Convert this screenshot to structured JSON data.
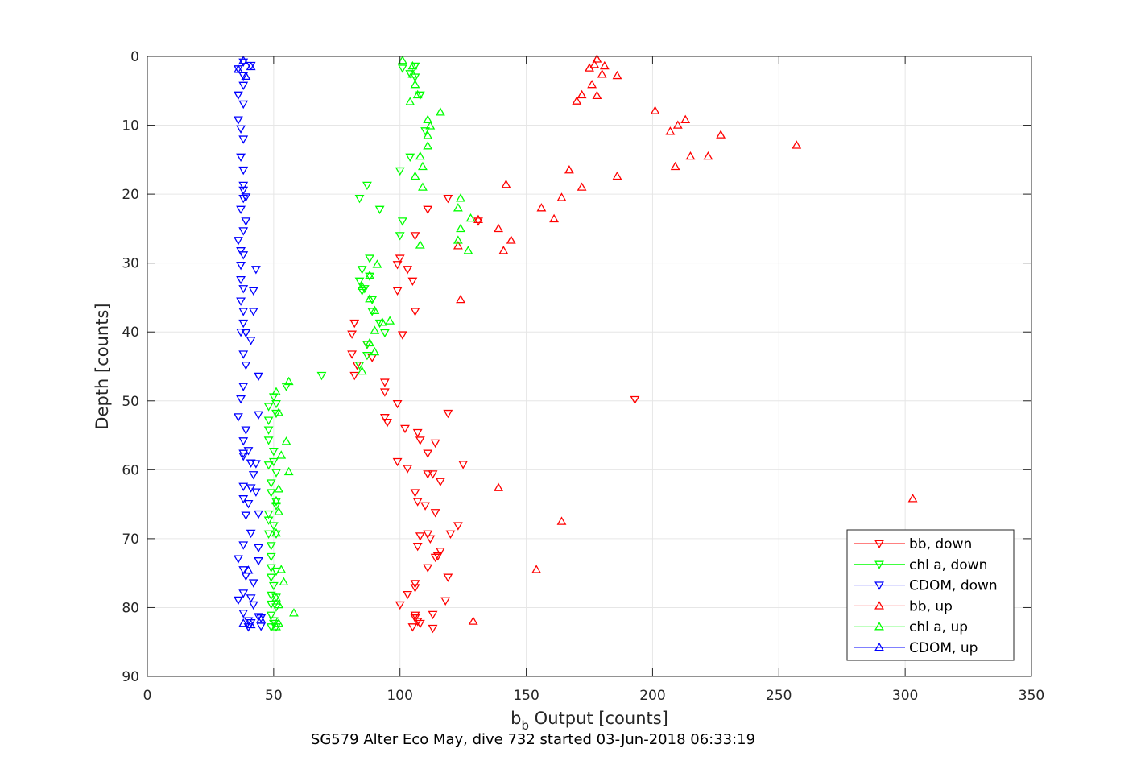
{
  "chart_data": {
    "type": "scatter",
    "caption": "SG579 Alter Eco May, dive 732 started 03-Jun-2018 06:33:19",
    "xlabel_main": "b",
    "xlabel_sub": "b",
    "xlabel_rest": " Output [counts]",
    "ylabel": "Depth [counts]",
    "xlim": [
      0,
      350
    ],
    "ylim": [
      0,
      90
    ],
    "y_reversed": true,
    "xticks": [
      "0",
      "50",
      "100",
      "150",
      "200",
      "250",
      "300",
      "350"
    ],
    "yticks": [
      "0",
      "10",
      "20",
      "30",
      "40",
      "50",
      "60",
      "70",
      "80",
      "90"
    ],
    "grid": true,
    "legend_position": "bottom-right",
    "legend": [
      "bb, down",
      "chl a, down",
      "CDOM, down",
      "bb, up",
      "chl a, up",
      "CDOM, up"
    ],
    "series": [
      {
        "name": "bb, down",
        "color": "#ff0000",
        "marker": "triangle-down",
        "points": [
          [
            119,
            20.6
          ],
          [
            111,
            22.2
          ],
          [
            131,
            23.9
          ],
          [
            106,
            26
          ],
          [
            100,
            29.3
          ],
          [
            103,
            30.9
          ],
          [
            99,
            30.2
          ],
          [
            105,
            32.6
          ],
          [
            99,
            34
          ],
          [
            106,
            37
          ],
          [
            82,
            38.7
          ],
          [
            81,
            40.3
          ],
          [
            101,
            40.4
          ],
          [
            87,
            41.8
          ],
          [
            81,
            43.2
          ],
          [
            89,
            43.7
          ],
          [
            83,
            44.8
          ],
          [
            82,
            46.3
          ],
          [
            94,
            47.3
          ],
          [
            94,
            48.7
          ],
          [
            99,
            50.4
          ],
          [
            119,
            51.8
          ],
          [
            94,
            52.4
          ],
          [
            95,
            53.1
          ],
          [
            102,
            54
          ],
          [
            107,
            54.6
          ],
          [
            108,
            55.7
          ],
          [
            114,
            56.1
          ],
          [
            111,
            57.6
          ],
          [
            99,
            58.8
          ],
          [
            125,
            59.2
          ],
          [
            103,
            59.8
          ],
          [
            111,
            60.6
          ],
          [
            113,
            60.6
          ],
          [
            116,
            61.7
          ],
          [
            106,
            63.3
          ],
          [
            107,
            64.6
          ],
          [
            110,
            65.2
          ],
          [
            114,
            66.2
          ],
          [
            123,
            68.1
          ],
          [
            111,
            69.3
          ],
          [
            108,
            69.6
          ],
          [
            120,
            69.3
          ],
          [
            112,
            70
          ],
          [
            107,
            71.1
          ],
          [
            116,
            71.8
          ],
          [
            115,
            72.5
          ],
          [
            114,
            72.7
          ],
          [
            111,
            74.2
          ],
          [
            119,
            75.6
          ],
          [
            106,
            76.5
          ],
          [
            106,
            77.1
          ],
          [
            103,
            78.1
          ],
          [
            118,
            79
          ],
          [
            100,
            79.6
          ],
          [
            106,
            81.1
          ],
          [
            113,
            81
          ],
          [
            106,
            81.5
          ],
          [
            107,
            82
          ],
          [
            108,
            82.3
          ],
          [
            105,
            82.8
          ],
          [
            113,
            83
          ],
          [
            193,
            49.8
          ]
        ]
      },
      {
        "name": "chl a, down",
        "color": "#00ff00",
        "marker": "triangle-down",
        "points": [
          [
            101,
            1.7
          ],
          [
            106,
            1.4
          ],
          [
            104,
            2.5
          ],
          [
            106,
            3
          ],
          [
            108,
            5.6
          ],
          [
            110,
            10.8
          ],
          [
            104,
            14.6
          ],
          [
            100,
            16.6
          ],
          [
            87,
            18.7
          ],
          [
            84,
            20.6
          ],
          [
            92,
            22.2
          ],
          [
            101,
            23.9
          ],
          [
            100,
            26
          ],
          [
            88,
            29.3
          ],
          [
            85,
            30.9
          ],
          [
            88,
            31.9
          ],
          [
            84,
            32.6
          ],
          [
            86,
            33.7
          ],
          [
            85,
            34
          ],
          [
            89,
            35.3
          ],
          [
            89,
            37
          ],
          [
            92,
            38.7
          ],
          [
            94,
            40.1
          ],
          [
            87,
            41.8
          ],
          [
            87,
            43.4
          ],
          [
            84,
            44.8
          ],
          [
            69,
            46.3
          ],
          [
            55,
            47.9
          ],
          [
            50,
            49.4
          ],
          [
            51,
            50.4
          ],
          [
            48,
            50.8
          ],
          [
            51,
            51.8
          ],
          [
            48,
            52.8
          ],
          [
            48,
            54.2
          ],
          [
            48,
            55.7
          ],
          [
            50,
            57.3
          ],
          [
            50,
            58.8
          ],
          [
            48,
            59.3
          ],
          [
            51,
            60.4
          ],
          [
            49,
            61.9
          ],
          [
            49,
            63.3
          ],
          [
            51,
            64.6
          ],
          [
            51,
            65.2
          ],
          [
            48,
            66.4
          ],
          [
            48,
            67.3
          ],
          [
            50,
            68.1
          ],
          [
            48,
            69.3
          ],
          [
            51,
            69.3
          ],
          [
            49,
            71
          ],
          [
            49,
            72.6
          ],
          [
            49,
            74.2
          ],
          [
            51,
            74.7
          ],
          [
            49,
            75.6
          ],
          [
            50,
            76.8
          ],
          [
            49,
            78.2
          ],
          [
            51,
            78.5
          ],
          [
            49,
            79.5
          ],
          [
            51,
            79.9
          ],
          [
            49,
            81.1
          ],
          [
            50,
            81.9
          ],
          [
            50,
            82.3
          ],
          [
            51,
            82.8
          ],
          [
            49,
            82.8
          ]
        ]
      },
      {
        "name": "CDOM, down",
        "color": "#0000ff",
        "marker": "triangle-down",
        "points": [
          [
            38,
            0.8
          ],
          [
            36,
            1.8
          ],
          [
            41,
            1.3
          ],
          [
            38,
            2.8
          ],
          [
            38,
            4.2
          ],
          [
            36,
            5.6
          ],
          [
            38,
            6.9
          ],
          [
            36,
            9.2
          ],
          [
            37,
            10.5
          ],
          [
            38,
            12
          ],
          [
            37,
            14.6
          ],
          [
            38,
            16.5
          ],
          [
            38,
            18.7
          ],
          [
            38,
            19.4
          ],
          [
            38,
            20.6
          ],
          [
            39,
            20.4
          ],
          [
            37,
            22.2
          ],
          [
            39,
            23.9
          ],
          [
            38,
            25.3
          ],
          [
            36,
            26.7
          ],
          [
            37,
            28.2
          ],
          [
            38,
            28.8
          ],
          [
            37,
            30.3
          ],
          [
            43,
            30.9
          ],
          [
            37,
            32.4
          ],
          [
            38,
            33.7
          ],
          [
            42,
            34
          ],
          [
            37,
            35.5
          ],
          [
            38,
            37
          ],
          [
            42,
            37
          ],
          [
            38,
            38.7
          ],
          [
            37,
            40
          ],
          [
            39,
            40.1
          ],
          [
            41,
            41.2
          ],
          [
            38,
            43.2
          ],
          [
            39,
            44.8
          ],
          [
            44,
            46.4
          ],
          [
            38,
            47.9
          ],
          [
            37,
            49.7
          ],
          [
            36,
            52.3
          ],
          [
            44,
            52
          ],
          [
            39,
            54.2
          ],
          [
            38,
            55.8
          ],
          [
            40,
            57.2
          ],
          [
            38,
            57.6
          ],
          [
            38,
            58
          ],
          [
            41,
            59
          ],
          [
            43,
            59.1
          ],
          [
            42,
            60.7
          ],
          [
            38,
            62.4
          ],
          [
            41,
            62.6
          ],
          [
            43,
            63.2
          ],
          [
            38,
            64.2
          ],
          [
            40,
            64.9
          ],
          [
            39,
            66.6
          ],
          [
            44,
            66.4
          ],
          [
            41,
            69.2
          ],
          [
            38,
            70.9
          ],
          [
            44,
            71.3
          ],
          [
            36,
            72.9
          ],
          [
            44,
            73.2
          ],
          [
            38,
            74.5
          ],
          [
            39,
            75.4
          ],
          [
            42,
            76.4
          ],
          [
            38,
            77.9
          ],
          [
            41,
            78.6
          ],
          [
            36,
            78.9
          ],
          [
            42,
            79.6
          ],
          [
            38,
            80.8
          ],
          [
            44,
            81.3
          ],
          [
            45,
            81.5
          ],
          [
            40,
            81.9
          ],
          [
            41,
            82.2
          ],
          [
            45,
            82.7
          ],
          [
            40,
            82.8
          ]
        ]
      },
      {
        "name": "bb, up",
        "color": "#ff0000",
        "marker": "triangle-up",
        "points": [
          [
            178,
            0.4
          ],
          [
            177,
            1.2
          ],
          [
            175,
            1.7
          ],
          [
            181,
            1.4
          ],
          [
            186,
            2.8
          ],
          [
            180,
            2.6
          ],
          [
            176,
            4.1
          ],
          [
            172,
            5.6
          ],
          [
            178,
            5.7
          ],
          [
            170,
            6.5
          ],
          [
            201,
            7.9
          ],
          [
            210,
            10
          ],
          [
            213,
            9.2
          ],
          [
            207,
            10.9
          ],
          [
            227,
            11.4
          ],
          [
            257,
            12.9
          ],
          [
            215,
            14.5
          ],
          [
            222,
            14.5
          ],
          [
            209,
            16
          ],
          [
            167,
            16.5
          ],
          [
            186,
            17.4
          ],
          [
            142,
            18.6
          ],
          [
            172,
            19
          ],
          [
            164,
            20.5
          ],
          [
            156,
            22
          ],
          [
            161,
            23.6
          ],
          [
            131,
            23.7
          ],
          [
            139,
            25
          ],
          [
            144,
            26.7
          ],
          [
            141,
            28.2
          ],
          [
            123,
            27.5
          ],
          [
            124,
            35.3
          ],
          [
            303,
            64.2
          ],
          [
            139,
            62.6
          ],
          [
            164,
            67.5
          ],
          [
            154,
            74.5
          ],
          [
            129,
            82
          ]
        ]
      },
      {
        "name": "chl a, up",
        "color": "#00ff00",
        "marker": "triangle-up",
        "points": [
          [
            101,
            0.6
          ],
          [
            105,
            1.4
          ],
          [
            105,
            2.6
          ],
          [
            106,
            4.1
          ],
          [
            107,
            5.6
          ],
          [
            104,
            6.6
          ],
          [
            116,
            8.1
          ],
          [
            111,
            9.2
          ],
          [
            112,
            10.1
          ],
          [
            111,
            11.5
          ],
          [
            111,
            13
          ],
          [
            108,
            14.5
          ],
          [
            109,
            16
          ],
          [
            106,
            17.4
          ],
          [
            109,
            19
          ],
          [
            124,
            20.6
          ],
          [
            123,
            22
          ],
          [
            128,
            23.5
          ],
          [
            124,
            25
          ],
          [
            123,
            26.7
          ],
          [
            108,
            27.4
          ],
          [
            127,
            28.2
          ],
          [
            91,
            30.2
          ],
          [
            88,
            31.8
          ],
          [
            85,
            33.4
          ],
          [
            88,
            35.2
          ],
          [
            90,
            36.9
          ],
          [
            93,
            38.6
          ],
          [
            96,
            38.4
          ],
          [
            90,
            39.8
          ],
          [
            88,
            41.6
          ],
          [
            90,
            42.9
          ],
          [
            85,
            45.7
          ],
          [
            56,
            47.2
          ],
          [
            51,
            48.7
          ],
          [
            52,
            51.7
          ],
          [
            55,
            55.9
          ],
          [
            53,
            57.9
          ],
          [
            56,
            60.3
          ],
          [
            52,
            62.8
          ],
          [
            51,
            64.5
          ],
          [
            52,
            66.1
          ],
          [
            51,
            69.2
          ],
          [
            53,
            74.5
          ],
          [
            54,
            76.3
          ],
          [
            51,
            78.6
          ],
          [
            52,
            79.6
          ],
          [
            58,
            80.8
          ],
          [
            52,
            82.3
          ],
          [
            51,
            82.8
          ]
        ]
      },
      {
        "name": "CDOM, up",
        "color": "#0000ff",
        "marker": "triangle-up",
        "points": [
          [
            38,
            0.6
          ],
          [
            36,
            1.9
          ],
          [
            41,
            1.5
          ],
          [
            39,
            2.9
          ],
          [
            40,
            74.6
          ],
          [
            45,
            81.7
          ],
          [
            41,
            82.5
          ],
          [
            38,
            82.3
          ]
        ]
      }
    ]
  }
}
